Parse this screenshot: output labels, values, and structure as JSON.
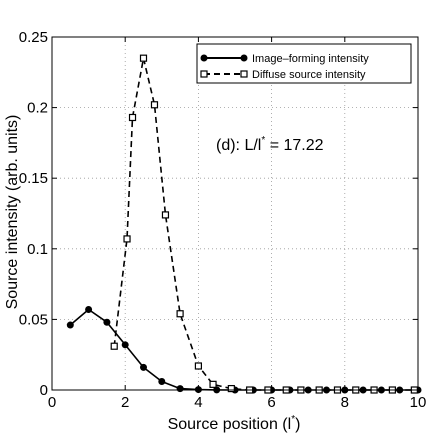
{
  "chart_data": {
    "type": "line",
    "title": "",
    "xlabel": "Source position (l",
    "xlabel_sup": "*",
    "xlabel_close": ")",
    "ylabel": "Source intensity (arb. units)",
    "xlim": [
      0,
      10
    ],
    "ylim": [
      0,
      0.25
    ],
    "xticks": [
      0,
      2,
      4,
      6,
      8,
      10
    ],
    "yticks": [
      0,
      0.05,
      0.1,
      0.15,
      0.2,
      0.25
    ],
    "xtick_labels": [
      "0",
      "2",
      "4",
      "6",
      "8",
      "10"
    ],
    "ytick_labels": [
      "0",
      "0.05",
      "0.1",
      "0.15",
      "0.2",
      "0.25"
    ],
    "grid": true,
    "legend_position": "top-right",
    "annotation": {
      "prefix": "(d): L/l",
      "sup": "*",
      "suffix": " = 17.22"
    },
    "series": [
      {
        "name": "Image–forming intensity",
        "line_style": "solid",
        "marker": "filled-circle",
        "color": "#000000",
        "x": [
          0.5,
          1.0,
          1.5,
          2.0,
          2.5,
          3.0,
          3.5,
          4.0,
          4.5,
          5.0,
          5.5,
          6.0,
          6.5,
          7.0,
          7.5,
          8.0,
          8.5,
          9.0,
          9.5,
          10.0
        ],
        "y": [
          0.046,
          0.057,
          0.048,
          0.032,
          0.016,
          0.006,
          0.001,
          0.0003,
          0.0001,
          0,
          0,
          0,
          0,
          0,
          0,
          0,
          0,
          0,
          0,
          0
        ]
      },
      {
        "name": "Diffuse source intensity",
        "line_style": "dashed",
        "marker": "open-square",
        "color": "#000000",
        "x": [
          1.7,
          2.05,
          2.2,
          2.5,
          2.8,
          3.1,
          3.5,
          4.0,
          4.4,
          4.9,
          5.4,
          5.9,
          6.4,
          6.8,
          7.3,
          7.8,
          8.3,
          8.8,
          9.3,
          9.9
        ],
        "y": [
          0.031,
          0.107,
          0.193,
          0.235,
          0.202,
          0.124,
          0.054,
          0.017,
          0.004,
          0.001,
          0,
          0,
          0,
          0,
          0,
          0,
          0,
          0,
          0,
          0
        ]
      }
    ]
  }
}
